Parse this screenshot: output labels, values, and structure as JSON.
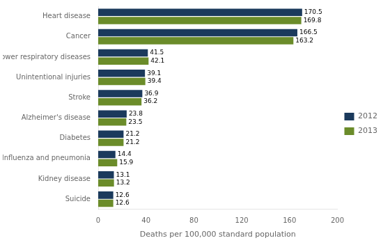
{
  "chart_data": {
    "type": "bar",
    "orientation": "horizontal",
    "categories": [
      "Heart disease",
      "Cancer",
      "Chronic lower respiratory diseases",
      "Unintentional injuries",
      "Stroke",
      "Alzheimer's disease",
      "Diabetes",
      "Influenza and pneumonia",
      "Kidney disease",
      "Suicide"
    ],
    "series": [
      {
        "name": "2012",
        "color": "#1b3a5c",
        "values": [
          170.5,
          166.5,
          41.5,
          39.1,
          36.9,
          23.8,
          21.2,
          14.4,
          13.1,
          12.6
        ]
      },
      {
        "name": "2013",
        "color": "#6b8c2a",
        "values": [
          169.8,
          163.2,
          42.1,
          39.4,
          36.2,
          23.5,
          21.2,
          15.9,
          13.2,
          12.6
        ]
      }
    ],
    "xlabel": "Deaths per 100,000 standard population",
    "xlim": [
      0,
      200
    ],
    "xticks": [
      0,
      40,
      80,
      120,
      160,
      200
    ],
    "data_labels": true,
    "legend": "right",
    "grid": false
  }
}
